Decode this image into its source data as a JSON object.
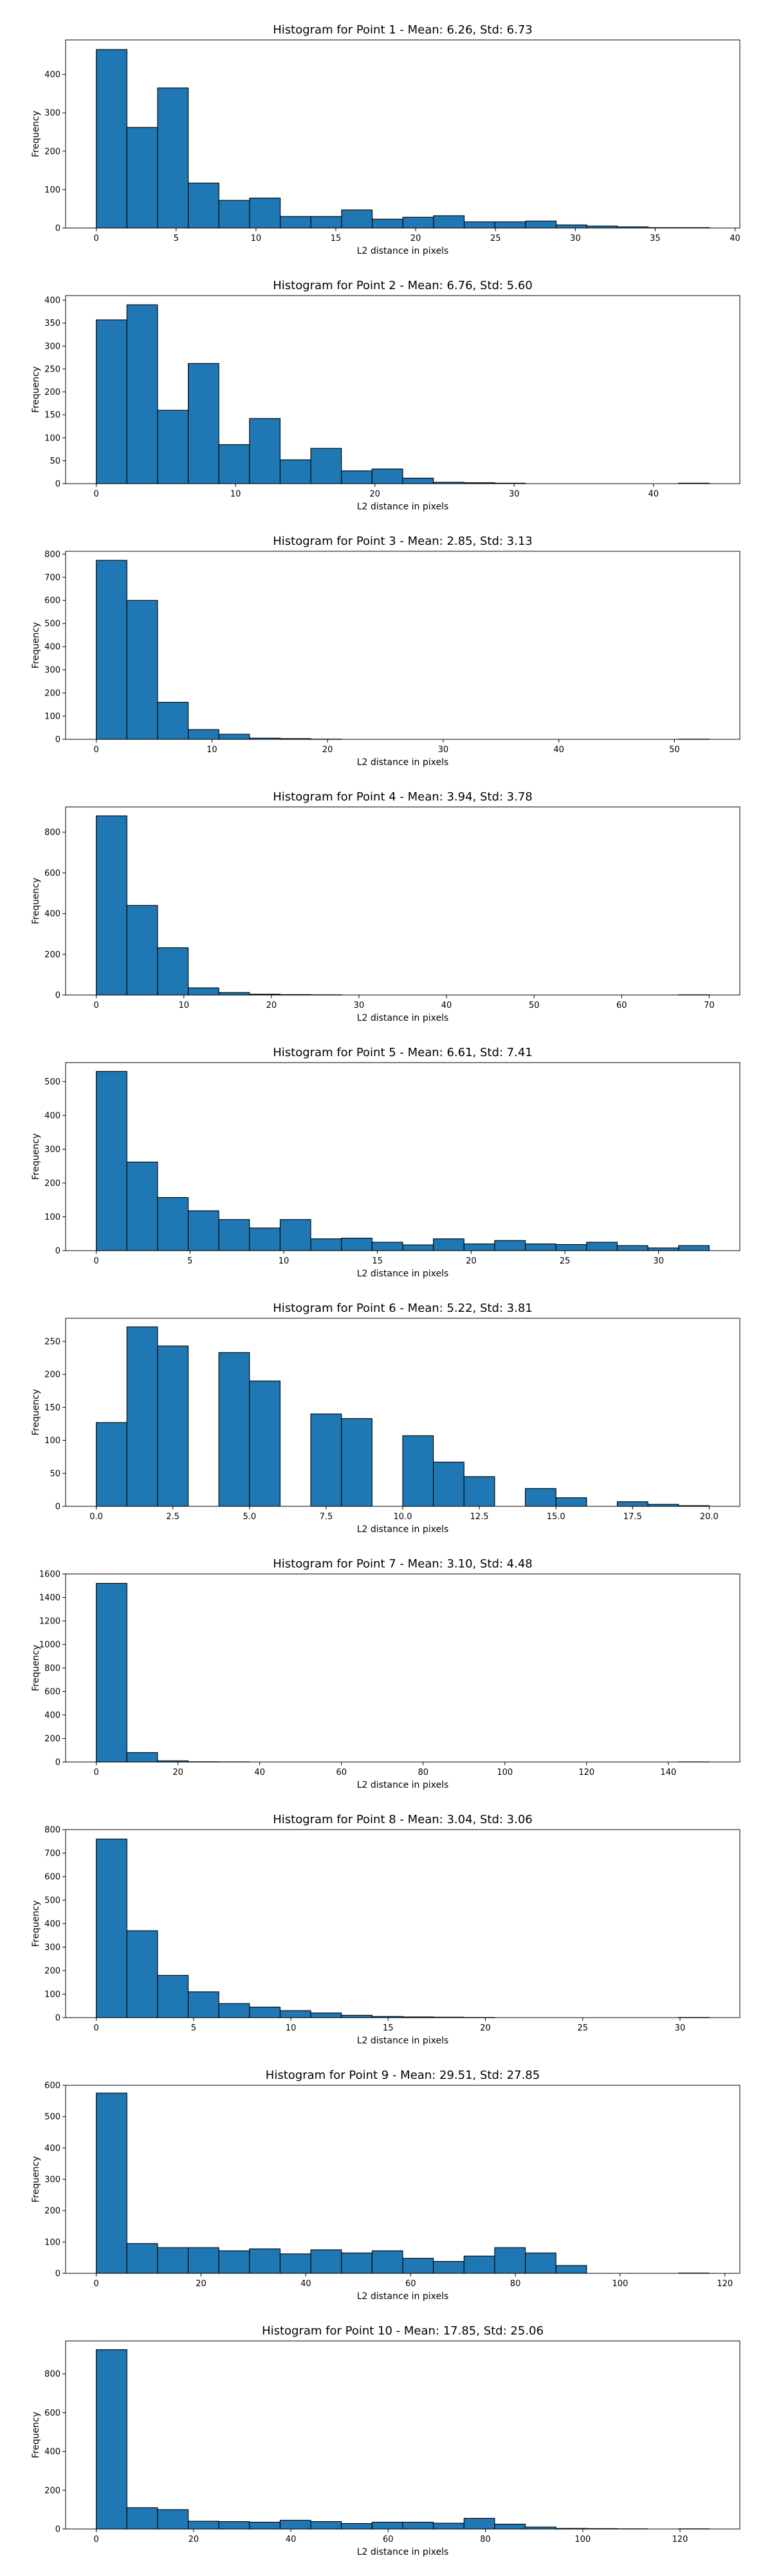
{
  "chart_data": [
    {
      "type": "bar",
      "title": "Histogram for Point 1 - Mean: 6.26, Std: 6.73",
      "xlabel": "L2 distance in pixels",
      "ylabel": "Frequency",
      "bin_start": 0,
      "bin_width": 1.92,
      "values": [
        465,
        262,
        365,
        117,
        72,
        78,
        30,
        30,
        47,
        23,
        28,
        32,
        16,
        16,
        18,
        8,
        5,
        3,
        1,
        1
      ],
      "xticks": [
        0,
        5,
        10,
        15,
        20,
        25,
        30,
        35,
        40
      ],
      "xtick_labels": [
        "0",
        "5",
        "10",
        "15",
        "20",
        "25",
        "30",
        "35",
        "40"
      ],
      "xlim": [
        -1.92,
        40.3
      ],
      "yticks": [
        0,
        100,
        200,
        300,
        400
      ],
      "ylim": [
        0,
        490
      ]
    },
    {
      "type": "bar",
      "title": "Histogram for Point 2 - Mean: 6.76, Std: 5.60",
      "xlabel": "L2 distance in pixels",
      "ylabel": "Frequency",
      "bin_start": 0,
      "bin_width": 2.2,
      "values": [
        357,
        390,
        160,
        262,
        85,
        142,
        52,
        77,
        28,
        32,
        12,
        3,
        2,
        1,
        0,
        0,
        0,
        0,
        0,
        1
      ],
      "xticks": [
        0,
        10,
        20,
        30,
        40
      ],
      "xtick_labels": [
        "0",
        "10",
        "20",
        "30",
        "40"
      ],
      "xlim": [
        -2.2,
        46.2
      ],
      "yticks": [
        0,
        50,
        100,
        150,
        200,
        250,
        300,
        350,
        400
      ],
      "ylim": [
        0,
        410
      ]
    },
    {
      "type": "bar",
      "title": "Histogram for Point 3 - Mean: 2.85, Std: 3.13",
      "xlabel": "L2 distance in pixels",
      "ylabel": "Frequency",
      "bin_start": 0,
      "bin_width": 2.65,
      "values": [
        773,
        600,
        160,
        42,
        22,
        5,
        3,
        1,
        0,
        0,
        0,
        0,
        0,
        0,
        0,
        0,
        0,
        0,
        0,
        1
      ],
      "xticks": [
        0,
        10,
        20,
        30,
        40,
        50
      ],
      "xtick_labels": [
        "0",
        "10",
        "20",
        "30",
        "40",
        "50"
      ],
      "xlim": [
        -2.65,
        55.65
      ],
      "yticks": [
        0,
        100,
        200,
        300,
        400,
        500,
        600,
        700,
        800
      ],
      "ylim": [
        0,
        812
      ]
    },
    {
      "type": "bar",
      "title": "Histogram for Point 4 - Mean: 3.94, Std: 3.78",
      "xlabel": "L2 distance in pixels",
      "ylabel": "Frequency",
      "bin_start": 0,
      "bin_width": 3.5,
      "values": [
        880,
        440,
        232,
        35,
        12,
        4,
        2,
        1,
        0,
        0,
        0,
        0,
        0,
        0,
        0,
        0,
        0,
        0,
        0,
        1
      ],
      "xticks": [
        0,
        10,
        20,
        30,
        40,
        50,
        60,
        70
      ],
      "xtick_labels": [
        "0",
        "10",
        "20",
        "30",
        "40",
        "50",
        "60",
        "70"
      ],
      "xlim": [
        -3.5,
        73.5
      ],
      "yticks": [
        0,
        200,
        400,
        600,
        800
      ],
      "ylim": [
        0,
        924
      ]
    },
    {
      "type": "bar",
      "title": "Histogram for Point 5 - Mean: 6.61, Std: 7.41",
      "xlabel": "L2 distance in pixels",
      "ylabel": "Frequency",
      "bin_start": 0,
      "bin_width": 1.635,
      "values": [
        530,
        262,
        157,
        118,
        92,
        67,
        92,
        35,
        37,
        25,
        17,
        35,
        20,
        30,
        20,
        18,
        25,
        15,
        8,
        15
      ],
      "xticks": [
        0,
        5,
        10,
        15,
        20,
        25,
        30
      ],
      "xtick_labels": [
        "0",
        "5",
        "10",
        "15",
        "20",
        "25",
        "30"
      ],
      "xlim": [
        -1.635,
        34.335
      ],
      "yticks": [
        0,
        100,
        200,
        300,
        400,
        500
      ],
      "ylim": [
        0,
        556
      ]
    },
    {
      "type": "bar",
      "title": "Histogram for Point 6 - Mean: 5.22, Std: 3.81",
      "xlabel": "L2 distance in pixels",
      "ylabel": "Frequency",
      "bin_start": 0,
      "bin_width": 1.0,
      "values": [
        127,
        272,
        243,
        0,
        233,
        190,
        0,
        140,
        133,
        0,
        107,
        67,
        45,
        0,
        27,
        13,
        0,
        7,
        3,
        1
      ],
      "xticks": [
        0,
        2.5,
        5,
        7.5,
        10,
        12.5,
        15,
        17.5,
        20
      ],
      "xtick_labels": [
        "0.0",
        "2.5",
        "5.0",
        "7.5",
        "10.0",
        "12.5",
        "15.0",
        "17.5",
        "20.0"
      ],
      "xlim": [
        -1.0,
        21.0
      ],
      "yticks": [
        0,
        50,
        100,
        150,
        200,
        250
      ],
      "ylim": [
        0,
        285
      ]
    },
    {
      "type": "bar",
      "title": "Histogram for Point 7 - Mean: 3.10, Std: 4.48",
      "xlabel": "L2 distance in pixels",
      "ylabel": "Frequency",
      "bin_start": 0,
      "bin_width": 7.5,
      "values": [
        1520,
        80,
        10,
        2,
        1,
        0,
        0,
        0,
        0,
        0,
        0,
        0,
        0,
        0,
        0,
        0,
        0,
        0,
        0,
        1
      ],
      "xticks": [
        0,
        20,
        40,
        60,
        80,
        100,
        120,
        140
      ],
      "xtick_labels": [
        "0",
        "20",
        "40",
        "60",
        "80",
        "100",
        "120",
        "140"
      ],
      "xlim": [
        -7.5,
        157.5
      ],
      "yticks": [
        0,
        200,
        400,
        600,
        800,
        1000,
        1200,
        1400,
        1600
      ],
      "ylim": [
        0,
        1600
      ]
    },
    {
      "type": "bar",
      "title": "Histogram for Point 8 - Mean: 3.04, Std: 3.06",
      "xlabel": "L2 distance in pixels",
      "ylabel": "Frequency",
      "bin_start": 0,
      "bin_width": 1.575,
      "values": [
        760,
        370,
        180,
        110,
        60,
        45,
        30,
        20,
        10,
        5,
        3,
        2,
        1,
        0,
        0,
        0,
        0,
        0,
        0,
        1
      ],
      "xticks": [
        0,
        5,
        10,
        15,
        20,
        25,
        30
      ],
      "xtick_labels": [
        "0",
        "5",
        "10",
        "15",
        "20",
        "25",
        "30"
      ],
      "xlim": [
        -1.575,
        33.075
      ],
      "yticks": [
        0,
        100,
        200,
        300,
        400,
        500,
        600,
        700,
        800
      ],
      "ylim": [
        0,
        800
      ]
    },
    {
      "type": "bar",
      "title": "Histogram for Point 9 - Mean: 29.51, Std: 27.85",
      "xlabel": "L2 distance in pixels",
      "ylabel": "Frequency",
      "bin_start": 0,
      "bin_width": 5.85,
      "values": [
        575,
        95,
        82,
        82,
        72,
        78,
        62,
        75,
        65,
        72,
        48,
        38,
        55,
        82,
        65,
        25,
        0,
        0,
        0,
        1
      ],
      "xticks": [
        0,
        20,
        40,
        60,
        80,
        100,
        120
      ],
      "xtick_labels": [
        "0",
        "20",
        "40",
        "60",
        "80",
        "100",
        "120"
      ],
      "xlim": [
        -5.85,
        122.85
      ],
      "yticks": [
        0,
        100,
        200,
        300,
        400,
        500,
        600
      ],
      "ylim": [
        0,
        600
      ]
    },
    {
      "type": "bar",
      "title": "Histogram for Point 10 - Mean: 17.85, Std: 25.06",
      "xlabel": "L2 distance in pixels",
      "ylabel": "Frequency",
      "bin_start": 0,
      "bin_width": 6.3,
      "values": [
        925,
        110,
        100,
        40,
        38,
        35,
        45,
        38,
        28,
        35,
        35,
        30,
        55,
        25,
        10,
        3,
        2,
        1,
        0,
        1
      ],
      "xticks": [
        0,
        20,
        40,
        60,
        80,
        100,
        120
      ],
      "xtick_labels": [
        "0",
        "20",
        "40",
        "60",
        "80",
        "100",
        "120"
      ],
      "xlim": [
        -6.3,
        132.3
      ],
      "yticks": [
        0,
        200,
        400,
        600,
        800
      ],
      "ylim": [
        0,
        970
      ]
    }
  ]
}
